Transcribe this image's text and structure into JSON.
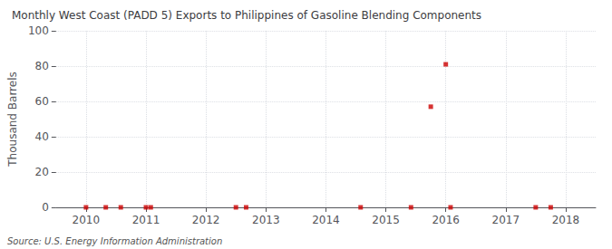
{
  "chart_data": {
    "type": "scatter",
    "title": "Monthly West Coast (PADD 5) Exports to Philippines of Gasoline Blending Components",
    "ylabel": "Thousand Barrels",
    "annotation": "Source: U.S. Energy Information Administration",
    "x": [
      2010.0,
      2010.33,
      2010.58,
      2011.0,
      2011.08,
      2012.5,
      2012.67,
      2014.58,
      2015.42,
      2015.75,
      2016.0,
      2016.08,
      2017.5,
      2017.75
    ],
    "values": [
      0,
      0,
      0,
      0,
      0,
      0,
      0,
      0,
      0,
      57,
      81,
      0,
      0,
      0
    ],
    "color": "#cc0000",
    "marker": "square",
    "xlim": [
      2009.5,
      2018.5
    ],
    "ylim": [
      0,
      100
    ],
    "xticks": [
      2010,
      2011,
      2012,
      2013,
      2014,
      2015,
      2016,
      2017,
      2018
    ],
    "yticks": [
      0,
      20,
      40,
      60,
      80,
      100
    ],
    "grid": true
  }
}
